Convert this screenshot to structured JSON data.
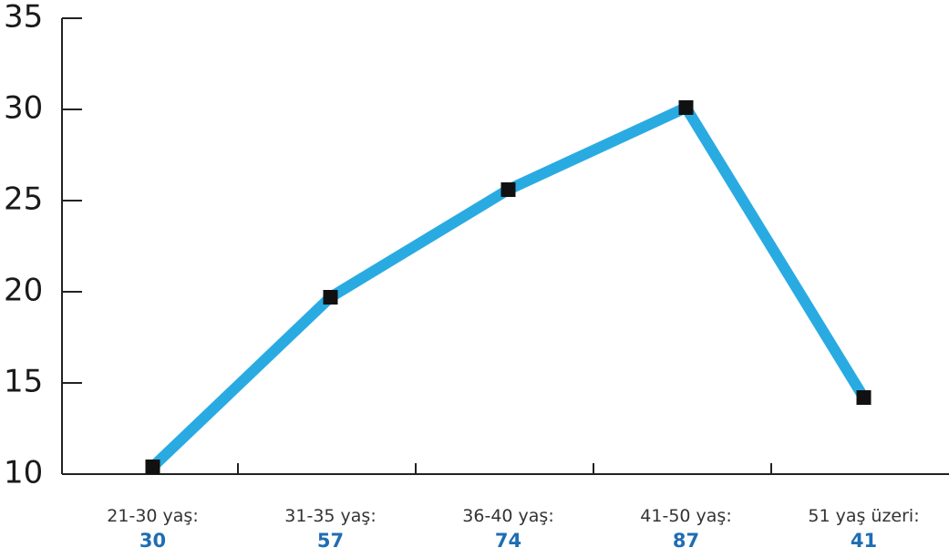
{
  "chart_data": {
    "type": "line",
    "categories": [
      "21-30 yaş:",
      "31-35 yaş:",
      "36-40 yaş:",
      "41-50 yaş:",
      "51 yaş üzeri:"
    ],
    "category_counts": [
      30,
      57,
      74,
      87,
      41
    ],
    "series": [
      {
        "color": "#29abe2",
        "values": [
          10.4,
          19.7,
          25.6,
          30.1,
          14.2
        ]
      }
    ],
    "ylim": [
      10,
      35
    ],
    "yticks": [
      10,
      15,
      20,
      25,
      30,
      35
    ]
  }
}
